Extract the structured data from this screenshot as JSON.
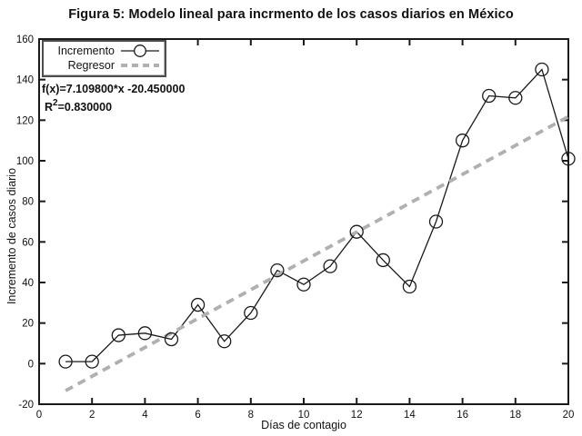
{
  "chart_data": {
    "type": "line",
    "title": "Figura 5: Modelo lineal para incrmento de los casos diarios en México",
    "xlabel": "Días de contagio",
    "ylabel": "Incremento de casos diario",
    "xlim": [
      0,
      20
    ],
    "ylim": [
      -20,
      160
    ],
    "xticks": [
      0,
      2,
      4,
      6,
      8,
      10,
      12,
      14,
      16,
      18,
      20
    ],
    "yticks": [
      -20,
      0,
      20,
      40,
      60,
      80,
      100,
      120,
      140,
      160
    ],
    "grid": false,
    "legend_position": "top-left",
    "series": [
      {
        "name": "Incremento",
        "type": "line+markers",
        "marker": "open-circle",
        "color": "#1a1a1a",
        "x": [
          1,
          2,
          3,
          4,
          5,
          6,
          7,
          8,
          9,
          10,
          11,
          12,
          13,
          14,
          15,
          16,
          17,
          18,
          19,
          20
        ],
        "y": [
          1,
          1,
          14,
          15,
          12,
          29,
          11,
          25,
          46,
          39,
          48,
          65,
          51,
          38,
          70,
          110,
          132,
          131,
          145,
          101
        ]
      },
      {
        "name": "Regresor",
        "type": "dashed-line",
        "color": "#b0b0b0",
        "slope": 7.1098,
        "intercept": -20.45,
        "x_start": 1,
        "x_end": 20
      }
    ],
    "annotation": {
      "equation": "f(x)=7.109800*x -20.450000",
      "r_base": "R",
      "r_sup": "2",
      "r_rest": "=0.830000"
    }
  },
  "colors": {
    "axis": "#1a1a1a",
    "regressor": "#b0b0b0",
    "background": "#ffffff"
  }
}
